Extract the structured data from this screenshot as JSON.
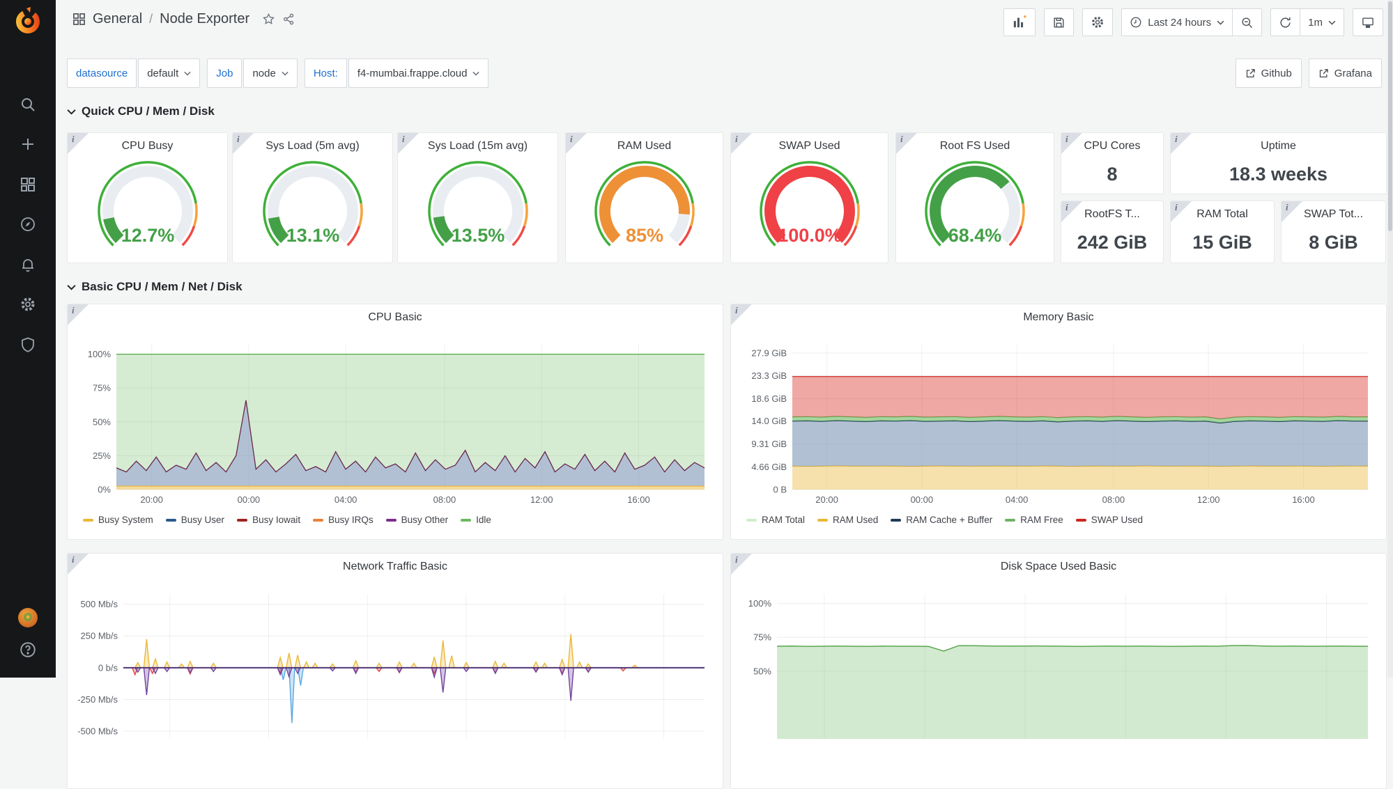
{
  "app": {
    "breadcrumb_section": "General",
    "breadcrumb_sep": "/",
    "breadcrumb_page": "Node Exporter"
  },
  "toolbar": {
    "time_range": "Last 24 hours",
    "refresh_interval": "1m"
  },
  "links": [
    {
      "label": "Github"
    },
    {
      "label": "Grafana"
    }
  ],
  "variables": [
    {
      "label": "datasource",
      "value": "default"
    },
    {
      "label": "Job",
      "value": "node"
    },
    {
      "label": "Host:",
      "value": "f4-mumbai.frappe.cloud"
    }
  ],
  "rows": [
    {
      "title": "Quick CPU / Mem / Disk"
    },
    {
      "title": "Basic CPU / Mem / Net / Disk"
    }
  ],
  "colors": {
    "green": "#43a047",
    "orange": "#ee9036",
    "red": "#ef4146",
    "ring_green": "#3eb039",
    "ring_orange": "#f5a23b",
    "ring_red": "#f04a45",
    "accent_blue": "#1f6fd0",
    "sidebar_bg": "#161719",
    "page_bg": "#f4f5f5"
  },
  "sidebar_icons": [
    "search",
    "create",
    "dashboards",
    "explore",
    "alerting",
    "configuration",
    "server-admin",
    "avatar",
    "help"
  ],
  "gauges": [
    {
      "title": "CPU Busy",
      "value": 12.7,
      "display": "12.7%",
      "color": "#43a047"
    },
    {
      "title": "Sys Load (5m avg)",
      "value": 13.1,
      "display": "13.1%",
      "color": "#43a047"
    },
    {
      "title": "Sys Load (15m avg)",
      "value": 13.5,
      "display": "13.5%",
      "color": "#43a047"
    },
    {
      "title": "RAM Used",
      "value": 85,
      "display": "85%",
      "color": "#ee9036"
    },
    {
      "title": "SWAP Used",
      "value": 100,
      "display": "100.0%",
      "color": "#ef4146"
    },
    {
      "title": "Root FS Used",
      "value": 68.4,
      "display": "68.4%",
      "color": "#43a047"
    }
  ],
  "stats": [
    {
      "title": "CPU Cores",
      "value": "8"
    },
    {
      "title": "Uptime",
      "value": "18.3 weeks"
    },
    {
      "title": "RootFS T...",
      "value": "242 GiB"
    },
    {
      "title": "RAM Total",
      "value": "15 GiB"
    },
    {
      "title": "SWAP Tot...",
      "value": "8 GiB"
    }
  ],
  "charts": {
    "cpu": {
      "title": "CPU Basic",
      "type": "area-stack",
      "ylim": [
        0,
        107
      ],
      "padL": 60,
      "yticks": [
        {
          "v": 100,
          "l": "100%"
        },
        {
          "v": 75,
          "l": "75%"
        },
        {
          "v": 50,
          "l": "50%"
        },
        {
          "v": 25,
          "l": "25%"
        },
        {
          "v": 0,
          "l": "0%"
        }
      ],
      "xticks": [
        {
          "f": 0.06,
          "l": "20:00"
        },
        {
          "f": 0.225,
          "l": "00:00"
        },
        {
          "f": 0.39,
          "l": "04:00"
        },
        {
          "f": 0.558,
          "l": "08:00"
        },
        {
          "f": 0.723,
          "l": "12:00"
        },
        {
          "f": 0.888,
          "l": "16:00"
        }
      ],
      "series": {
        "busy": [
          16,
          13,
          21,
          14,
          24,
          13,
          18,
          15,
          27,
          14,
          20,
          13,
          25,
          66,
          15,
          22,
          13,
          19,
          26,
          14,
          17,
          13,
          28,
          15,
          21,
          13,
          24,
          16,
          19,
          13,
          27,
          14,
          22,
          15,
          18,
          29,
          13,
          20,
          14,
          25,
          13,
          23,
          16,
          28,
          13,
          19,
          15,
          26,
          14,
          21,
          13,
          27,
          15,
          18,
          24,
          13,
          22,
          14,
          20,
          16
        ]
      },
      "layers": [
        {
          "kind": "band",
          "lower": "busy",
          "upper": 100,
          "fill": "#73bf69",
          "op": 0.3,
          "stroke": "#56a64b",
          "swd": 1.2
        },
        {
          "kind": "band",
          "lower": 2.5,
          "upper": "busy",
          "fill": "#7d97b5",
          "op": 0.6,
          "stroke": "#69254d",
          "swd": 1.3
        },
        {
          "kind": "band",
          "lower": 0,
          "upper": 2.5,
          "fill": "#eab839",
          "op": 0.5,
          "stroke": "#eab839",
          "swd": 1.2
        }
      ],
      "legend": [
        [
          "Busy System",
          "#eab839"
        ],
        [
          "Busy User",
          "#2a5a8a"
        ],
        [
          "Busy Iowait",
          "#9e2420"
        ],
        [
          "Busy IRQs",
          "#e8823a"
        ],
        [
          "Busy Other",
          "#7b2f8e"
        ],
        [
          "Idle",
          "#6cb85f"
        ]
      ]
    },
    "memory": {
      "title": "Memory Basic",
      "type": "area-stack",
      "ylim": [
        0,
        29.6
      ],
      "padL": 78,
      "yticks": [
        {
          "v": 27.9,
          "l": "27.9 GiB"
        },
        {
          "v": 23.3,
          "l": "23.3 GiB"
        },
        {
          "v": 18.6,
          "l": "18.6 GiB"
        },
        {
          "v": 14,
          "l": "14.0 GiB"
        },
        {
          "v": 9.31,
          "l": "9.31 GiB"
        },
        {
          "v": 4.66,
          "l": "4.66 GiB"
        },
        {
          "v": 0,
          "l": "0 B"
        }
      ],
      "xticks": [
        {
          "f": 0.06,
          "l": "20:00"
        },
        {
          "f": 0.225,
          "l": "00:00"
        },
        {
          "f": 0.39,
          "l": "04:00"
        },
        {
          "f": 0.558,
          "l": "08:00"
        },
        {
          "f": 0.723,
          "l": "12:00"
        },
        {
          "f": 0.888,
          "l": "16:00"
        }
      ],
      "series": {
        "used": [
          4.8,
          4.75,
          4.8,
          4.85,
          4.8,
          4.78,
          4.82,
          4.8,
          4.76,
          4.8,
          4.84,
          4.8,
          4.78,
          4.8,
          4.82,
          4.78,
          4.8,
          4.84,
          4.8,
          4.75,
          4.8,
          4.82,
          4.78,
          4.8,
          4.85,
          4.8,
          4.78,
          4.82,
          4.8,
          4.76,
          4.8,
          4.84,
          4.8,
          4.78,
          4.82,
          4.8,
          4.75,
          4.8,
          4.82,
          4.8
        ],
        "cache": [
          14.0,
          14.05,
          13.95,
          14.1,
          14.0,
          13.9,
          14.05,
          14.0,
          14.1,
          13.95,
          14.0,
          14.05,
          13.9,
          14.0,
          14.1,
          14.0,
          13.95,
          14.05,
          13.85,
          14.0,
          14.05,
          13.95,
          14.1,
          14.0,
          13.9,
          14.0,
          14.05,
          13.95,
          14.0,
          13.6,
          13.95,
          14.05,
          14.0,
          13.9,
          14.05,
          14.0,
          13.95,
          14.1,
          14.0,
          14.0
        ],
        "free": [
          14.85,
          14.9,
          14.8,
          14.95,
          14.85,
          14.75,
          14.9,
          14.85,
          14.95,
          14.8,
          14.85,
          14.9,
          14.75,
          14.85,
          14.95,
          14.85,
          14.8,
          14.9,
          14.7,
          14.85,
          14.9,
          14.8,
          14.95,
          14.85,
          14.75,
          14.85,
          14.9,
          14.8,
          14.85,
          14.45,
          14.8,
          14.9,
          14.85,
          14.75,
          14.9,
          14.85,
          14.8,
          14.95,
          14.85,
          14.85
        ]
      },
      "layers": [
        {
          "kind": "band",
          "lower": 0,
          "upper": "used",
          "fill": "#eab839",
          "op": 0.42,
          "stroke": "#eab839",
          "swd": 1.3
        },
        {
          "kind": "band",
          "lower": "used",
          "upper": "cache",
          "fill": "#7d97b5",
          "op": 0.6,
          "stroke": "#1f3b57",
          "swd": 1.5
        },
        {
          "kind": "band",
          "lower": "cache",
          "upper": "free",
          "fill": "#73bf69",
          "op": 0.65,
          "stroke": "#56a64b",
          "swd": 1.2
        },
        {
          "kind": "band",
          "lower": "free",
          "upper": 23.1,
          "fill": "#e05248",
          "op": 0.5,
          "stroke": "#d43f3a",
          "swd": 1.3
        }
      ],
      "legend": [
        [
          "RAM Total",
          "#cfeec9"
        ],
        [
          "RAM Used",
          "#eab839"
        ],
        [
          "RAM Cache + Buffer",
          "#1f3b57"
        ],
        [
          "RAM Free",
          "#6fb364"
        ],
        [
          "SWAP Used",
          "#cc2520"
        ]
      ]
    },
    "network": {
      "title": "Network Traffic Basic",
      "type": "spikes",
      "ylim": [
        -560,
        580
      ],
      "padL": 70,
      "yticks": [
        {
          "v": 500,
          "l": "500 Mb/s"
        },
        {
          "v": 250,
          "l": "250 Mb/s"
        },
        {
          "v": 0,
          "l": "0 b/s"
        },
        {
          "v": -250,
          "l": "-250 Mb/s"
        },
        {
          "v": -500,
          "l": "-500 Mb/s"
        }
      ],
      "xticks": [
        {
          "f": 0.08,
          "l": null
        },
        {
          "f": 0.25,
          "l": null
        },
        {
          "f": 0.42,
          "l": null
        },
        {
          "f": 0.59,
          "l": null
        },
        {
          "f": 0.76,
          "l": null
        },
        {
          "f": 0.93,
          "l": null
        }
      ],
      "layers": [
        {
          "kind": "spikes",
          "color": "#eab839",
          "points": [
            [
              0.025,
              40
            ],
            [
              0.04,
              225
            ],
            [
              0.055,
              70
            ],
            [
              0.075,
              45
            ],
            [
              0.1,
              30
            ],
            [
              0.115,
              50
            ],
            [
              0.155,
              35
            ],
            [
              0.27,
              80
            ],
            [
              0.285,
              115
            ],
            [
              0.3,
              100
            ],
            [
              0.315,
              45
            ],
            [
              0.33,
              35
            ],
            [
              0.36,
              30
            ],
            [
              0.4,
              55
            ],
            [
              0.44,
              35
            ],
            [
              0.475,
              45
            ],
            [
              0.5,
              35
            ],
            [
              0.535,
              85
            ],
            [
              0.55,
              215
            ],
            [
              0.565,
              95
            ],
            [
              0.59,
              40
            ],
            [
              0.64,
              50
            ],
            [
              0.655,
              35
            ],
            [
              0.71,
              45
            ],
            [
              0.725,
              35
            ],
            [
              0.755,
              65
            ],
            [
              0.77,
              265
            ],
            [
              0.785,
              45
            ],
            [
              0.8,
              30
            ],
            [
              0.88,
              20
            ]
          ]
        },
        {
          "kind": "spikes",
          "color": "#57a8e0",
          "points": [
            [
              0.275,
              -95
            ],
            [
              0.29,
              -435
            ],
            [
              0.305,
              -140
            ]
          ]
        },
        {
          "kind": "spikes",
          "color": "#e0453e",
          "points": [
            [
              0.02,
              -55
            ],
            [
              0.05,
              -45
            ],
            [
              0.115,
              -50
            ],
            [
              0.27,
              -40
            ],
            [
              0.4,
              -35
            ],
            [
              0.44,
              -30
            ],
            [
              0.475,
              -40
            ],
            [
              0.535,
              -45
            ],
            [
              0.64,
              -40
            ],
            [
              0.71,
              -30
            ],
            [
              0.755,
              -45
            ],
            [
              0.8,
              -35
            ],
            [
              0.86,
              -25
            ]
          ]
        },
        {
          "kind": "spikes",
          "color": "#7243a0",
          "points": [
            [
              0.025,
              -35
            ],
            [
              0.04,
              -215
            ],
            [
              0.055,
              -45
            ],
            [
              0.075,
              -30
            ],
            [
              0.115,
              -40
            ],
            [
              0.155,
              -30
            ],
            [
              0.27,
              -55
            ],
            [
              0.285,
              -70
            ],
            [
              0.3,
              -45
            ],
            [
              0.36,
              -25
            ],
            [
              0.4,
              -45
            ],
            [
              0.475,
              -35
            ],
            [
              0.535,
              -75
            ],
            [
              0.55,
              -195
            ],
            [
              0.59,
              -30
            ],
            [
              0.64,
              -45
            ],
            [
              0.71,
              -35
            ],
            [
              0.755,
              -55
            ],
            [
              0.77,
              -260
            ],
            [
              0.8,
              -35
            ]
          ]
        },
        {
          "kind": "spikes",
          "color": "#4f3575",
          "w": 2,
          "points": []
        }
      ]
    },
    "disk": {
      "title": "Disk Space Used Basic",
      "type": "area",
      "ylim": [
        0,
        107
      ],
      "padL": 56,
      "yticks": [
        {
          "v": 100,
          "l": "100%"
        },
        {
          "v": 75,
          "l": "75%"
        },
        {
          "v": 50,
          "l": "50%"
        }
      ],
      "xticks": [
        {
          "f": 0.08,
          "l": null
        },
        {
          "f": 0.25,
          "l": null
        },
        {
          "f": 0.42,
          "l": null
        },
        {
          "f": 0.59,
          "l": null
        },
        {
          "f": 0.76,
          "l": null
        },
        {
          "f": 0.93,
          "l": null
        }
      ],
      "series": {
        "used": [
          68.4,
          68.5,
          68.3,
          68.4,
          68.5,
          68.4,
          68.3,
          68.5,
          68.4,
          68.4,
          68.3,
          64.8,
          68.9,
          68.8,
          68.6,
          68.5,
          68.5,
          68.6,
          68.5,
          68.4,
          68.3,
          68.4,
          68.5,
          68.4,
          68.5,
          68.4,
          68.3,
          68.4,
          68.5,
          68.4,
          68.9,
          69.0,
          68.6,
          68.4,
          68.5,
          68.4,
          68.4,
          68.5,
          68.4,
          68.4
        ]
      },
      "layers": [
        {
          "kind": "band",
          "lower": 0,
          "upper": "used",
          "fill": "#73bf69",
          "op": 0.32,
          "stroke": "#5aa64f",
          "swd": 1.5
        }
      ]
    }
  }
}
